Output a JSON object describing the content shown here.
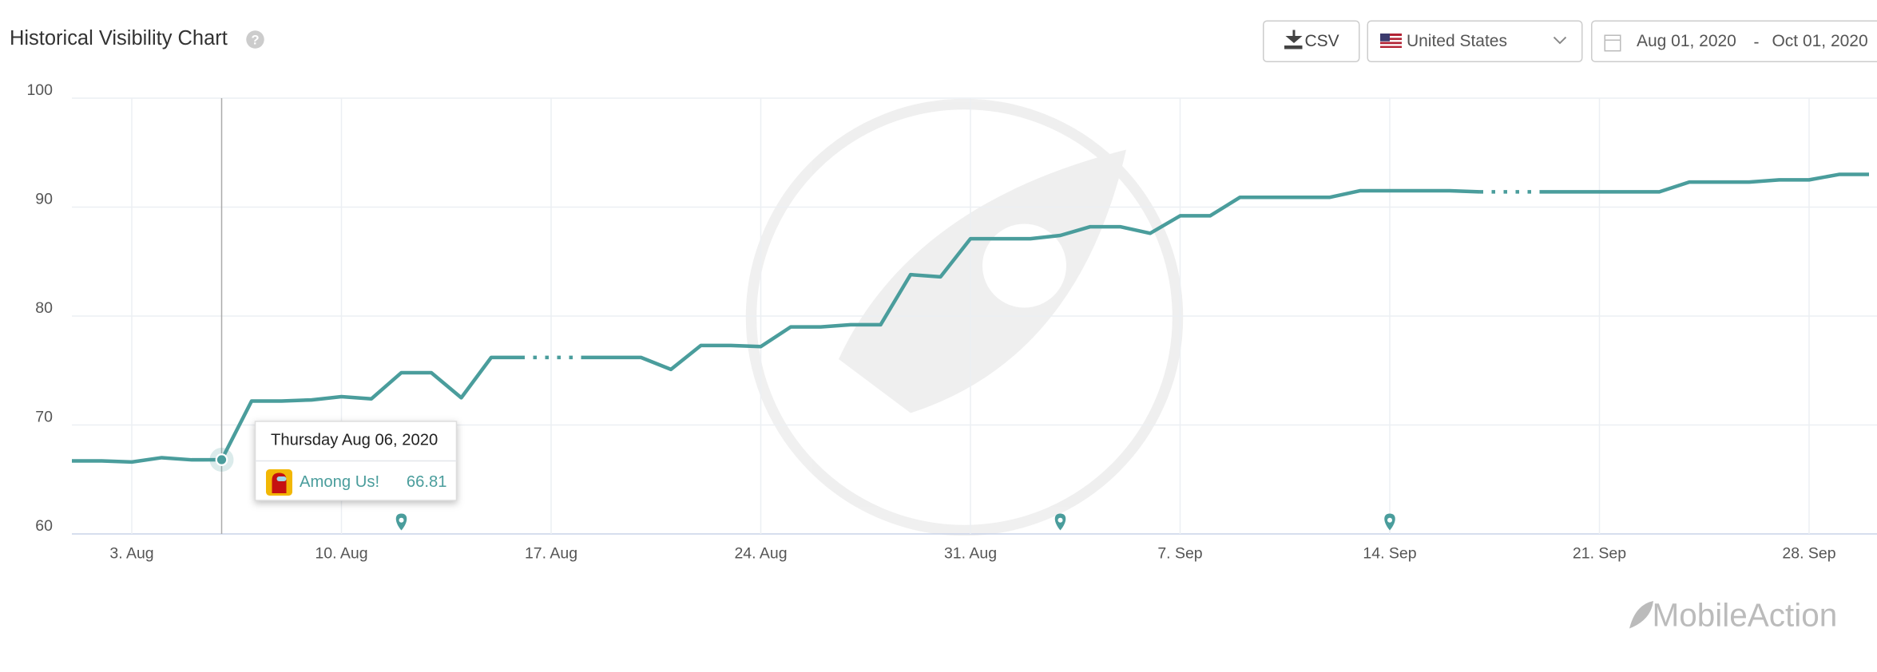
{
  "header": {
    "title": "Historical Visibility Chart",
    "csv_button": "CSV",
    "country": "United States",
    "date_from": "Aug 01, 2020",
    "date_separator": "-",
    "date_to": "Oct 01, 2020"
  },
  "chart_data": {
    "type": "line",
    "x": [
      "2020-08-01",
      "2020-08-02",
      "2020-08-03",
      "2020-08-04",
      "2020-08-05",
      "2020-08-06",
      "2020-08-07",
      "2020-08-08",
      "2020-08-09",
      "2020-08-10",
      "2020-08-11",
      "2020-08-12",
      "2020-08-13",
      "2020-08-14",
      "2020-08-15",
      "2020-08-16",
      "2020-08-17",
      "2020-08-18",
      "2020-08-19",
      "2020-08-20",
      "2020-08-21",
      "2020-08-22",
      "2020-08-23",
      "2020-08-24",
      "2020-08-25",
      "2020-08-26",
      "2020-08-27",
      "2020-08-28",
      "2020-08-29",
      "2020-08-30",
      "2020-08-31",
      "2020-09-01",
      "2020-09-02",
      "2020-09-03",
      "2020-09-04",
      "2020-09-05",
      "2020-09-06",
      "2020-09-07",
      "2020-09-08",
      "2020-09-09",
      "2020-09-10",
      "2020-09-11",
      "2020-09-12",
      "2020-09-13",
      "2020-09-14",
      "2020-09-15",
      "2020-09-16",
      "2020-09-17",
      "2020-09-18",
      "2020-09-19",
      "2020-09-20",
      "2020-09-21",
      "2020-09-22",
      "2020-09-23",
      "2020-09-24",
      "2020-09-25",
      "2020-09-26",
      "2020-09-27",
      "2020-09-28",
      "2020-09-29",
      "2020-09-30"
    ],
    "series": [
      {
        "name": "Among Us!",
        "color": "#4a9d9c",
        "values": [
          66.7,
          66.7,
          66.6,
          67.0,
          66.8,
          66.81,
          72.2,
          72.2,
          72.3,
          72.6,
          72.4,
          74.8,
          74.8,
          72.5,
          76.2,
          76.2,
          null,
          76.2,
          76.2,
          76.2,
          75.1,
          77.3,
          77.3,
          77.2,
          79.0,
          79.0,
          79.2,
          79.2,
          83.8,
          83.6,
          87.1,
          87.1,
          87.1,
          87.4,
          88.2,
          88.2,
          87.6,
          89.2,
          89.2,
          90.9,
          90.9,
          90.9,
          90.9,
          91.5,
          91.5,
          91.5,
          91.5,
          91.4,
          null,
          91.4,
          91.4,
          91.4,
          91.4,
          91.4,
          92.3,
          92.3,
          92.3,
          92.5,
          92.5,
          93.0,
          93.0
        ]
      }
    ],
    "xlim": [
      "2020-08-01",
      "2020-09-30"
    ],
    "xticks": [
      {
        "value": "2020-08-03",
        "label": "3. Aug"
      },
      {
        "value": "2020-08-10",
        "label": "10. Aug"
      },
      {
        "value": "2020-08-17",
        "label": "17. Aug"
      },
      {
        "value": "2020-08-24",
        "label": "24. Aug"
      },
      {
        "value": "2020-08-31",
        "label": "31. Aug"
      },
      {
        "value": "2020-09-07",
        "label": "7. Sep"
      },
      {
        "value": "2020-09-14",
        "label": "14. Sep"
      },
      {
        "value": "2020-09-21",
        "label": "21. Sep"
      },
      {
        "value": "2020-09-28",
        "label": "28. Sep"
      }
    ],
    "ylim": [
      60,
      100
    ],
    "yticks": [
      60,
      70,
      80,
      90,
      100
    ],
    "grid": true,
    "event_dates": [
      "2020-08-12",
      "2020-09-03",
      "2020-09-14"
    ],
    "tooltip": {
      "date": "Thursday Aug 06, 2020",
      "index": 5
    }
  },
  "brand": "MobileAction"
}
